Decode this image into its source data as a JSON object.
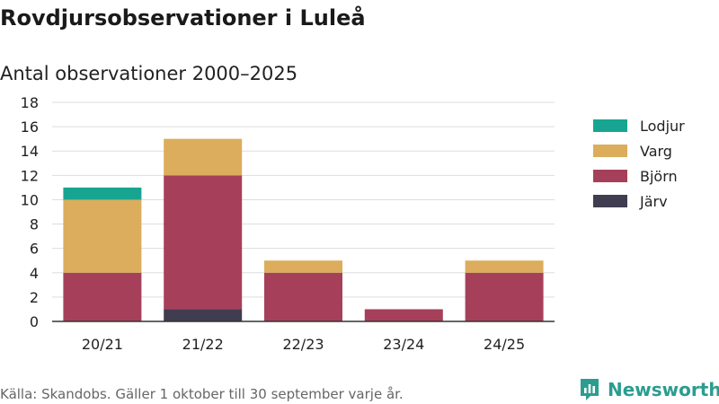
{
  "title": "Rovdjursobservationer i Luleå",
  "source": "Källa: Skandobs. Gäller 1 oktober till 30 september varje år.",
  "brand": {
    "name": "Newsworthy",
    "icon": "bar-chart-logo-icon",
    "color": "#2a9d8f"
  },
  "chart_data": {
    "type": "bar",
    "stacked": true,
    "title": "Antal observationer 2000–2025",
    "xlabel": "",
    "ylabel": "",
    "categories": [
      "20/21",
      "21/22",
      "22/23",
      "23/24",
      "24/25"
    ],
    "series": [
      {
        "name": "Järv",
        "color": "#3f3d4f",
        "values": [
          0,
          1,
          0,
          0,
          0
        ]
      },
      {
        "name": "Björn",
        "color": "#a6405a",
        "values": [
          4,
          11,
          4,
          1,
          4
        ]
      },
      {
        "name": "Varg",
        "color": "#dbad5c",
        "values": [
          6,
          3,
          1,
          0,
          1
        ]
      },
      {
        "name": "Lodjur",
        "color": "#17a592",
        "values": [
          1,
          0,
          0,
          0,
          0
        ]
      }
    ],
    "legend_order": [
      "Lodjur",
      "Varg",
      "Björn",
      "Järv"
    ],
    "legend_position": "right",
    "ylim": [
      0,
      18
    ],
    "yticks": [
      0,
      2,
      4,
      6,
      8,
      10,
      12,
      14,
      16,
      18
    ],
    "grid": true
  }
}
